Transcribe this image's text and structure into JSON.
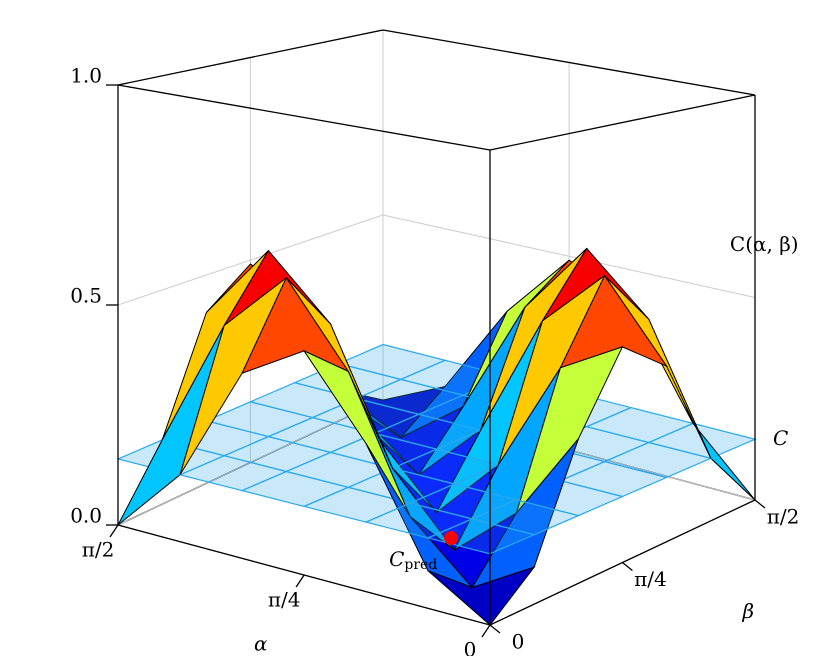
{
  "chart_data": {
    "type": "surface3d",
    "x_label": "α",
    "y_label": "β",
    "surface_label": "C(α, β)",
    "x": [
      0,
      0.262,
      0.524,
      0.785,
      1.047,
      1.309,
      1.571
    ],
    "y": [
      0,
      0.262,
      0.524,
      0.785,
      1.047,
      1.309,
      1.571
    ],
    "z": [
      [
        0,
        0.08,
        0.32,
        0.49,
        0.41,
        0.15,
        0
      ],
      [
        0.08,
        0,
        0.12,
        0.41,
        0.59,
        0.45,
        0.15
      ],
      [
        0.32,
        0.12,
        0,
        0.15,
        0.45,
        0.59,
        0.41
      ],
      [
        0.49,
        0.41,
        0.15,
        0,
        0.15,
        0.41,
        0.49
      ],
      [
        0.41,
        0.59,
        0.45,
        0.15,
        0,
        0.12,
        0.32
      ],
      [
        0.15,
        0.45,
        0.59,
        0.41,
        0.12,
        0,
        0.08
      ],
      [
        0,
        0.15,
        0.41,
        0.49,
        0.32,
        0.08,
        0
      ]
    ],
    "xlim": [
      0,
      1.571
    ],
    "ylim": [
      0,
      1.571
    ],
    "zlim": [
      0,
      1
    ],
    "xticks": [
      {
        "value": 0,
        "label": "0"
      },
      {
        "value": 0.785,
        "label": "π/4"
      },
      {
        "value": 1.571,
        "label": "π/2"
      }
    ],
    "yticks": [
      {
        "value": 0,
        "label": "0"
      },
      {
        "value": 0.785,
        "label": "π/4"
      },
      {
        "value": 1.571,
        "label": "π/2"
      }
    ],
    "zticks": [
      {
        "value": 0,
        "label": "0.0"
      },
      {
        "value": 0.5,
        "label": "0.5"
      },
      {
        "value": 1,
        "label": "1.0"
      }
    ],
    "plane": {
      "value": 0.15,
      "label": "C",
      "color": "#29a8f0"
    },
    "point": {
      "x": 0.2,
      "y": 0.05,
      "z": 0.15,
      "color": "#ff0000",
      "label": "C",
      "label_sub": "pred"
    }
  }
}
